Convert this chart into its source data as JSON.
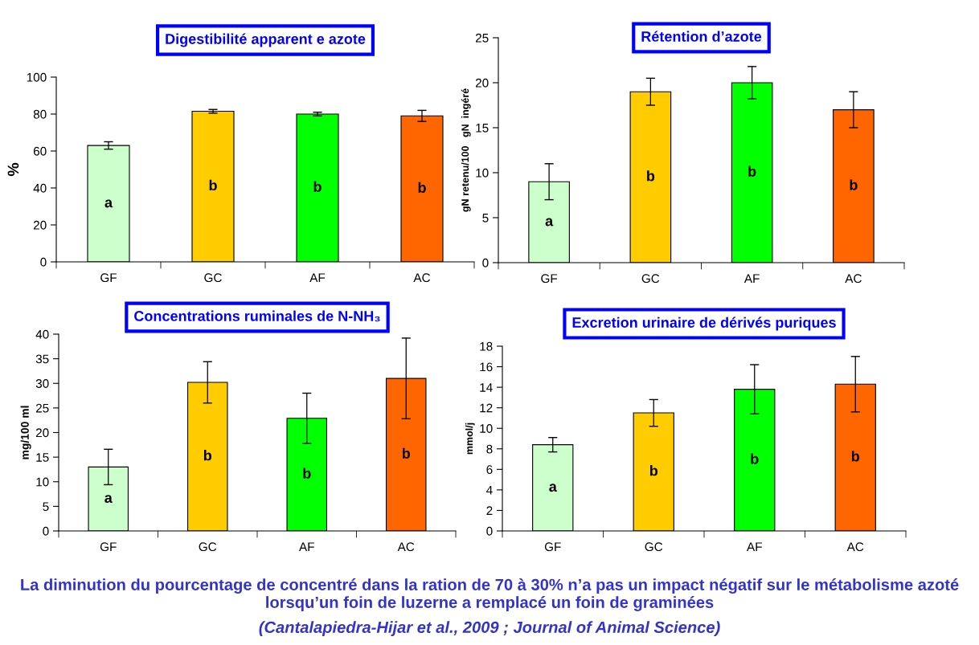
{
  "chart_data": [
    {
      "type": "bar",
      "title": "Digestibilité apparent e azote",
      "ylabel": "%",
      "categories": [
        "GF",
        "GC",
        "AF",
        "AC"
      ],
      "values": [
        63,
        81.5,
        80,
        79
      ],
      "errors": [
        2,
        1,
        1,
        3
      ],
      "colors": [
        "#ccffcc",
        "#ffcc00",
        "#00ff00",
        "#ff6600"
      ],
      "value_labels": [
        "a",
        "b",
        "b",
        "b"
      ],
      "ylim": [
        0,
        100
      ],
      "yticks": [
        0,
        20,
        40,
        60,
        80,
        100
      ]
    },
    {
      "type": "bar",
      "title": "Rétention d’azote",
      "ylabel": "gN retenu/100   gN  ingéré",
      "categories": [
        "GF",
        "GC",
        "AF",
        "AC"
      ],
      "values": [
        9,
        19,
        20,
        17
      ],
      "errors": [
        2,
        1.5,
        1.8,
        2
      ],
      "colors": [
        "#ccffcc",
        "#ffcc00",
        "#00ff00",
        "#ff6600"
      ],
      "value_labels": [
        "a",
        "b",
        "b",
        "b"
      ],
      "ylim": [
        0,
        25
      ],
      "yticks": [
        0,
        5,
        10,
        15,
        20,
        25
      ]
    },
    {
      "type": "bar",
      "title": "Concentrations ruminales de N-NH₃",
      "ylabel": "mg/100 ml",
      "categories": [
        "GF",
        "GC",
        "AF",
        "AC"
      ],
      "values": [
        13,
        30.2,
        22.9,
        31
      ],
      "errors": [
        3.6,
        4.2,
        5.1,
        8.2
      ],
      "colors": [
        "#ccffcc",
        "#ffcc00",
        "#00ff00",
        "#ff6600"
      ],
      "value_labels": [
        "a",
        "b",
        "b",
        "b"
      ],
      "ylim": [
        0,
        40
      ],
      "yticks": [
        0,
        5,
        10,
        15,
        20,
        25,
        30,
        35,
        40
      ]
    },
    {
      "type": "bar",
      "title": "Excretion urinaire de dérivés puriques",
      "ylabel": "mmol/j",
      "categories": [
        "GF",
        "GC",
        "AF",
        "AC"
      ],
      "values": [
        8.4,
        11.5,
        13.8,
        14.3
      ],
      "errors": [
        0.7,
        1.3,
        2.4,
        2.7
      ],
      "colors": [
        "#ccffcc",
        "#ffcc00",
        "#00ff00",
        "#ff6600"
      ],
      "value_labels": [
        "a",
        "b",
        "b",
        "b"
      ],
      "ylim": [
        0,
        18
      ],
      "yticks": [
        0,
        2,
        4,
        6,
        8,
        10,
        12,
        14,
        16,
        18
      ],
      "annotations": [
        "La diminution du pourcentage de concentré dans la ration de 70 à 30% n’a pas un impact négatif sur le métabolisme azoté lorsqu’un foin de luzerne a remplacé un foin de graminées",
        "(Cantalapiedra-Hijar et al., 2009 ; Journal of Animal Science)"
      ]
    }
  ]
}
